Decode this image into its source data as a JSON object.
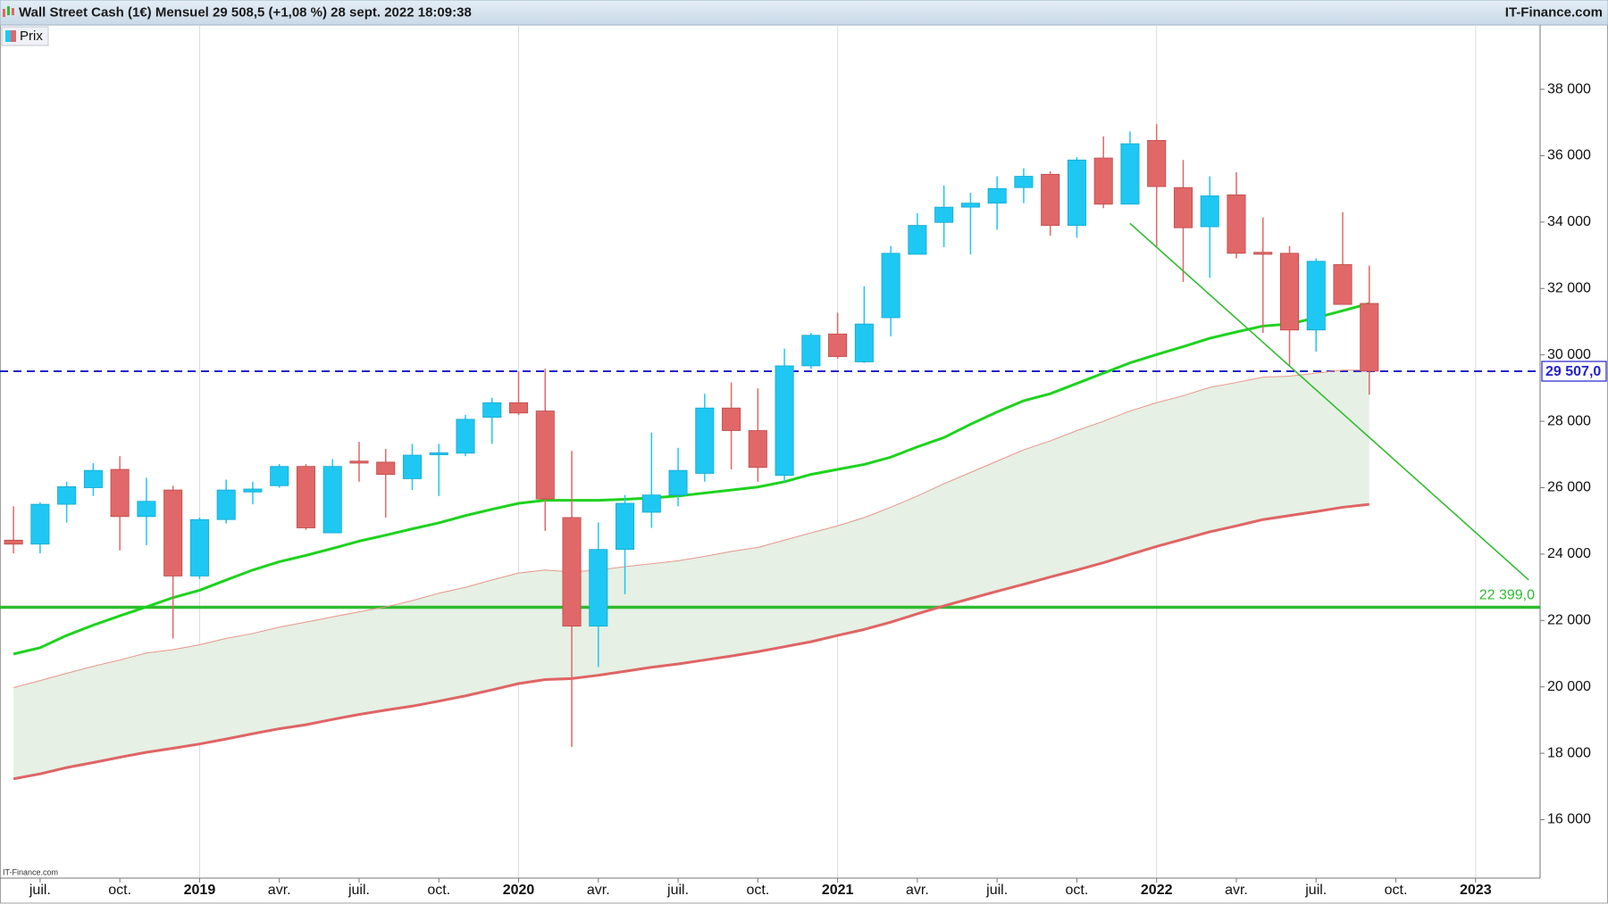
{
  "chart_data": {
    "type": "candlestick",
    "title": "Wall Street Cash (1€) Mensuel 29 508,5 (+1,08 %) 28 sept. 2022 18:09:38",
    "source": "IT-Finance.com",
    "watermark": "IT-Finance.com",
    "x": [
      "2018-06",
      "2018-07",
      "2018-08",
      "2018-09",
      "2018-10",
      "2018-11",
      "2018-12",
      "2019-01",
      "2019-02",
      "2019-03",
      "2019-04",
      "2019-05",
      "2019-06",
      "2019-07",
      "2019-08",
      "2019-09",
      "2019-10",
      "2019-11",
      "2019-12",
      "2020-01",
      "2020-02",
      "2020-03",
      "2020-04",
      "2020-05",
      "2020-06",
      "2020-07",
      "2020-08",
      "2020-09",
      "2020-10",
      "2020-11",
      "2020-12",
      "2021-01",
      "2021-02",
      "2021-03",
      "2021-04",
      "2021-05",
      "2021-06",
      "2021-07",
      "2021-08",
      "2021-09",
      "2021-10",
      "2021-11",
      "2021-12",
      "2022-01",
      "2022-02",
      "2022-03",
      "2022-04",
      "2022-05",
      "2022-06",
      "2022-07",
      "2022-08",
      "2022-09"
    ],
    "series": [
      {
        "name": "Prix",
        "up_color": "#1ec8f2",
        "down_color": "#e06868",
        "open": [
          24420,
          24300,
          25500,
          26000,
          26550,
          25130,
          25930,
          23340,
          25040,
          25870,
          26060,
          26640,
          24640,
          26800,
          26770,
          26270,
          26990,
          27040,
          28120,
          28560,
          28310,
          25100,
          21830,
          24140,
          25260,
          25780,
          26430,
          28400,
          27720,
          26370,
          29670,
          30630,
          29790,
          31120,
          33030,
          33990,
          34450,
          34570,
          35040,
          35440,
          33900,
          35930,
          34540,
          36460,
          35040,
          33860,
          34820,
          33090,
          33060,
          30750,
          32720,
          31550
        ],
        "high": [
          25440,
          25560,
          26180,
          26740,
          26950,
          26300,
          26060,
          25100,
          26240,
          26180,
          26710,
          26710,
          26860,
          27380,
          27170,
          27320,
          27320,
          28190,
          28710,
          29510,
          29580,
          27110,
          24950,
          25780,
          27660,
          27200,
          28830,
          29170,
          28990,
          30190,
          30660,
          31270,
          32070,
          33280,
          34270,
          35100,
          34880,
          35380,
          35620,
          35530,
          35960,
          36580,
          36730,
          36950,
          35870,
          35380,
          35500,
          34140,
          33280,
          32910,
          34300,
          32690
        ],
        "low": [
          24020,
          24020,
          24950,
          25750,
          24110,
          24270,
          21460,
          23250,
          24920,
          25500,
          26000,
          24730,
          24640,
          26180,
          25100,
          25930,
          25750,
          26950,
          27320,
          28190,
          24700,
          18190,
          20600,
          22790,
          24790,
          25440,
          26180,
          26550,
          26180,
          26180,
          29580,
          29880,
          29760,
          30560,
          33030,
          33250,
          33030,
          33770,
          34570,
          33590,
          33530,
          34420,
          34540,
          33220,
          32200,
          32320,
          32910,
          30660,
          29670,
          30100,
          31520,
          28800
        ],
        "close": [
          24300,
          25500,
          26030,
          26520,
          25130,
          25590,
          23340,
          25040,
          25930,
          25960,
          26640,
          24790,
          26640,
          26740,
          26400,
          26980,
          27050,
          28060,
          28560,
          28250,
          25660,
          21830,
          24140,
          25530,
          25780,
          26520,
          28400,
          27720,
          26610,
          29670,
          30590,
          29950,
          30930,
          33060,
          33900,
          34450,
          34570,
          35010,
          35380,
          33900,
          35870,
          34540,
          36360,
          35070,
          33830,
          34790,
          33060,
          33030,
          30750,
          32820,
          31520,
          29510
        ]
      }
    ],
    "lines": [
      {
        "color": "#1ed21e",
        "width": 3,
        "values": [
          20990,
          21180,
          21550,
          21860,
          22140,
          22410,
          22690,
          22910,
          23220,
          23520,
          23770,
          23960,
          24170,
          24390,
          24570,
          24760,
          24940,
          25160,
          25350,
          25530,
          25620,
          25620,
          25620,
          25650,
          25690,
          25750,
          25840,
          25930,
          26020,
          26180,
          26400,
          26550,
          26700,
          26920,
          27230,
          27510,
          27910,
          28280,
          28620,
          28830,
          29140,
          29450,
          29760,
          30010,
          30250,
          30500,
          30690,
          30870,
          30930,
          31120,
          31330,
          31550
        ]
      },
      {
        "color": "#e06464",
        "width": 3,
        "values": [
          17230,
          17380,
          17570,
          17720,
          17880,
          18030,
          18150,
          18280,
          18430,
          18590,
          18740,
          18860,
          19020,
          19170,
          19300,
          19420,
          19570,
          19730,
          19910,
          20100,
          20220,
          20250,
          20350,
          20470,
          20590,
          20690,
          20810,
          20930,
          21060,
          21210,
          21360,
          21550,
          21730,
          21950,
          22200,
          22440,
          22660,
          22880,
          23090,
          23310,
          23520,
          23740,
          23990,
          24230,
          24450,
          24670,
          24850,
          25040,
          25160,
          25280,
          25410,
          25500
        ]
      },
      {
        "color": "#e8968c",
        "width": 1,
        "values": [
          19980,
          20190,
          20410,
          20620,
          20810,
          21020,
          21120,
          21270,
          21460,
          21610,
          21800,
          21950,
          22110,
          22260,
          22410,
          22600,
          22820,
          23000,
          23220,
          23430,
          23520,
          23460,
          23520,
          23620,
          23710,
          23800,
          23930,
          24080,
          24200,
          24420,
          24640,
          24850,
          25100,
          25410,
          25750,
          26120,
          26460,
          26800,
          27140,
          27410,
          27720,
          28000,
          28310,
          28560,
          28770,
          29020,
          29170,
          29330,
          29360,
          29450,
          29540,
          29540
        ]
      }
    ],
    "band": {
      "upper": 2,
      "lower": 1,
      "color": "#e6f0e4"
    },
    "trendline": {
      "x": [
        "2021-12",
        "2023-03"
      ],
      "values": [
        33960,
        23220
      ],
      "color": "#33bb33"
    },
    "hlines": [
      {
        "value": 29507,
        "label": "29 507,0",
        "color": "#2222cc",
        "dashed": true,
        "boxed": true
      },
      {
        "value": 22399,
        "label": "22 399,0",
        "color": "#2fbb2f",
        "dashed": false,
        "boxed": false
      }
    ],
    "xlim": [
      "2018-05-16",
      "2023-03-14"
    ],
    "xticks": [
      {
        "value": "2018-07",
        "label": "juil."
      },
      {
        "value": "2018-10",
        "label": "oct."
      },
      {
        "value": "2019-01",
        "label": "2019"
      },
      {
        "value": "2019-04",
        "label": "avr."
      },
      {
        "value": "2019-07",
        "label": "juil."
      },
      {
        "value": "2019-10",
        "label": "oct."
      },
      {
        "value": "2020-01",
        "label": "2020"
      },
      {
        "value": "2020-04",
        "label": "avr."
      },
      {
        "value": "2020-07",
        "label": "juil."
      },
      {
        "value": "2020-10",
        "label": "oct."
      },
      {
        "value": "2021-01",
        "label": "2021"
      },
      {
        "value": "2021-04",
        "label": "avr."
      },
      {
        "value": "2021-07",
        "label": "juil."
      },
      {
        "value": "2021-10",
        "label": "oct."
      },
      {
        "value": "2022-01",
        "label": "2022"
      },
      {
        "value": "2022-04",
        "label": "avr."
      },
      {
        "value": "2022-07",
        "label": "juil."
      },
      {
        "value": "2022-10",
        "label": "oct."
      },
      {
        "value": "2023-01",
        "label": "2023"
      }
    ],
    "ylim": [
      14240,
      39910
    ],
    "yticks": [
      {
        "value": 16000,
        "label": "16 000"
      },
      {
        "value": 18000,
        "label": "18 000"
      },
      {
        "value": 20000,
        "label": "20 000"
      },
      {
        "value": 22000,
        "label": "22 000"
      },
      {
        "value": 24000,
        "label": "24 000"
      },
      {
        "value": 26000,
        "label": "26 000"
      },
      {
        "value": 28000,
        "label": "28 000"
      },
      {
        "value": 30000,
        "label": "30 000"
      },
      {
        "value": 32000,
        "label": "32 000"
      },
      {
        "value": 34000,
        "label": "34 000"
      },
      {
        "value": 36000,
        "label": "36 000"
      },
      {
        "value": 38000,
        "label": "38 000"
      }
    ],
    "grid": true
  }
}
